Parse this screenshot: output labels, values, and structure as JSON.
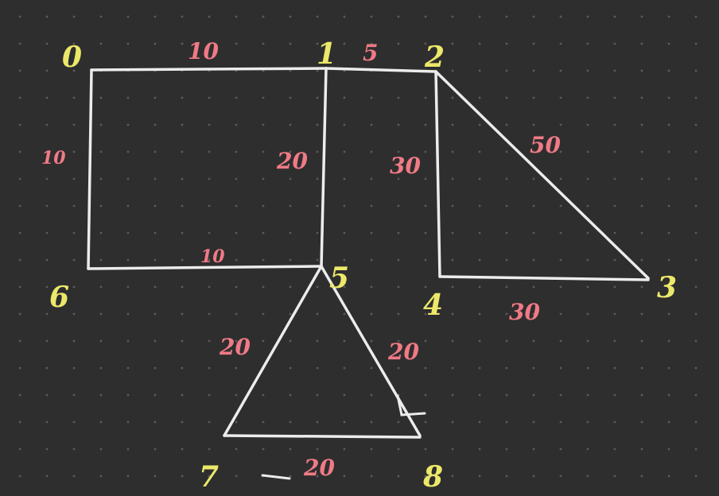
{
  "graph": {
    "nodes": [
      {
        "id": "0",
        "label": "0"
      },
      {
        "id": "1",
        "label": "1"
      },
      {
        "id": "2",
        "label": "2"
      },
      {
        "id": "3",
        "label": "3"
      },
      {
        "id": "4",
        "label": "4"
      },
      {
        "id": "5",
        "label": "5"
      },
      {
        "id": "6",
        "label": "6"
      },
      {
        "id": "7",
        "label": "7"
      },
      {
        "id": "8",
        "label": "8"
      }
    ],
    "edges": [
      {
        "from": "0",
        "to": "1",
        "weight": "10"
      },
      {
        "from": "1",
        "to": "2",
        "weight": "5"
      },
      {
        "from": "0",
        "to": "6",
        "weight": "10"
      },
      {
        "from": "1",
        "to": "5",
        "weight": "20"
      },
      {
        "from": "6",
        "to": "5",
        "weight": "10"
      },
      {
        "from": "2",
        "to": "4",
        "weight": "30"
      },
      {
        "from": "2",
        "to": "3",
        "weight": "50"
      },
      {
        "from": "4",
        "to": "3",
        "weight": "30"
      },
      {
        "from": "5",
        "to": "7",
        "weight": "20"
      },
      {
        "from": "5",
        "to": "8",
        "weight": "20"
      },
      {
        "from": "7",
        "to": "8",
        "weight": "20"
      }
    ],
    "colors": {
      "background": "#2e2e2e",
      "edge": "#ececec",
      "node_label": "#ece86a",
      "weight_label": "#f07a86"
    }
  }
}
